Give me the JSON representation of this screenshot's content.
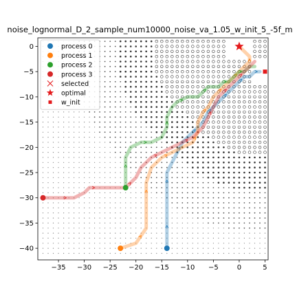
{
  "chart_data": {
    "type": "scatter",
    "title": "noise_lognormal_D_2_sample_num10000_noise_va_1.05_w_init_5_-5f_m",
    "xlabel": "",
    "ylabel": "",
    "xlim": [
      -39,
      5.6
    ],
    "ylim": [
      -42.3,
      1.7
    ],
    "xticks": [
      -35,
      -30,
      -25,
      -20,
      -15,
      -10,
      -5,
      0,
      5
    ],
    "yticks": [
      0,
      -5,
      -10,
      -15,
      -20,
      -25,
      -30,
      -35,
      -40
    ],
    "grid": false,
    "legend": {
      "placement": "top-left",
      "entries": [
        {
          "label": "process 0",
          "marker": "circle",
          "color": "#1f77b4"
        },
        {
          "label": "process 1",
          "marker": "circle",
          "color": "#ff7f0e"
        },
        {
          "label": "process 2",
          "marker": "circle",
          "color": "#2ca02c"
        },
        {
          "label": "process 3",
          "marker": "circle",
          "color": "#d62728"
        },
        {
          "label": "selected",
          "marker": "x",
          "color": "#e41a1c"
        },
        {
          "label": "optimal",
          "marker": "star",
          "color": "#e41a1c"
        },
        {
          "label": "w_init",
          "marker": "square",
          "color": "#e41a1c"
        }
      ]
    },
    "optimal": {
      "x": 0,
      "y": 0
    },
    "w_init": {
      "x": 5,
      "y": -5
    },
    "series": [
      {
        "name": "process 0",
        "color": "#1f77b4",
        "start": {
          "x": -14,
          "y": -40
        },
        "path": [
          [
            -14,
            -40
          ],
          [
            -14,
            -37
          ],
          [
            -14,
            -34
          ],
          [
            -14,
            -31
          ],
          [
            -14,
            -28
          ],
          [
            -14,
            -25
          ],
          [
            -13,
            -23
          ],
          [
            -12,
            -21
          ],
          [
            -11,
            -19
          ],
          [
            -10,
            -18
          ],
          [
            -9,
            -17
          ],
          [
            -8,
            -16
          ],
          [
            -7,
            -15
          ],
          [
            -6,
            -13
          ],
          [
            -5,
            -12
          ],
          [
            -4,
            -11
          ],
          [
            -3,
            -10
          ],
          [
            -2,
            -9
          ],
          [
            -1,
            -8
          ],
          [
            0,
            -7
          ],
          [
            1,
            -6
          ],
          [
            2,
            -6
          ],
          [
            3,
            -5
          ],
          [
            4,
            -5
          ]
        ]
      },
      {
        "name": "process 1",
        "color": "#ff7f0e",
        "start": {
          "x": -23,
          "y": -40
        },
        "path": [
          [
            -23,
            -40
          ],
          [
            -20,
            -39
          ],
          [
            -18,
            -36
          ],
          [
            -18,
            -33
          ],
          [
            -18,
            -30
          ],
          [
            -18,
            -27
          ],
          [
            -17,
            -24
          ],
          [
            -15,
            -22
          ],
          [
            -13,
            -21
          ],
          [
            -11,
            -20
          ],
          [
            -9,
            -19
          ],
          [
            -8,
            -17
          ],
          [
            -8,
            -15
          ],
          [
            -7,
            -13
          ],
          [
            -6,
            -12
          ],
          [
            -5,
            -10
          ],
          [
            -4,
            -9
          ],
          [
            -3,
            -8
          ],
          [
            -2,
            -7
          ],
          [
            -1,
            -6
          ],
          [
            0,
            -5
          ],
          [
            1,
            -4
          ],
          [
            2,
            -3
          ],
          [
            2,
            -2
          ],
          [
            1,
            -1
          ],
          [
            0,
            0
          ]
        ]
      },
      {
        "name": "process 2",
        "color": "#2ca02c",
        "start": {
          "x": -22,
          "y": -28
        },
        "path": [
          [
            -22,
            -28
          ],
          [
            -22,
            -25
          ],
          [
            -22,
            -22
          ],
          [
            -21,
            -20
          ],
          [
            -19,
            -19
          ],
          [
            -17,
            -19
          ],
          [
            -15,
            -18
          ],
          [
            -14,
            -16
          ],
          [
            -14,
            -14
          ],
          [
            -13,
            -12
          ],
          [
            -12,
            -11
          ],
          [
            -10,
            -10
          ],
          [
            -8,
            -10
          ],
          [
            -7,
            -9
          ],
          [
            -6,
            -8
          ],
          [
            -4,
            -8
          ],
          [
            -3,
            -7
          ],
          [
            -2,
            -7
          ],
          [
            -1,
            -6
          ],
          [
            0,
            -5
          ],
          [
            1,
            -5
          ],
          [
            2,
            -4
          ],
          [
            3,
            -4
          ]
        ]
      },
      {
        "name": "process 3",
        "color": "#d62728",
        "start": {
          "x": -38,
          "y": -30
        },
        "path": [
          [
            -38,
            -30
          ],
          [
            -35,
            -30
          ],
          [
            -32,
            -30
          ],
          [
            -30,
            -29
          ],
          [
            -29,
            -28
          ],
          [
            -27,
            -28
          ],
          [
            -25,
            -28
          ],
          [
            -22,
            -28
          ],
          [
            -20,
            -26
          ],
          [
            -19,
            -24
          ],
          [
            -17,
            -22
          ],
          [
            -15,
            -21
          ],
          [
            -13,
            -20
          ],
          [
            -11,
            -19
          ],
          [
            -9,
            -18
          ],
          [
            -7,
            -16
          ],
          [
            -6,
            -14
          ],
          [
            -5,
            -12
          ],
          [
            -4,
            -10
          ],
          [
            -3,
            -9
          ],
          [
            -2,
            -8
          ],
          [
            -1,
            -7
          ],
          [
            0,
            -6
          ],
          [
            1,
            -5
          ],
          [
            2,
            -4
          ],
          [
            3,
            -3
          ]
        ]
      }
    ]
  }
}
